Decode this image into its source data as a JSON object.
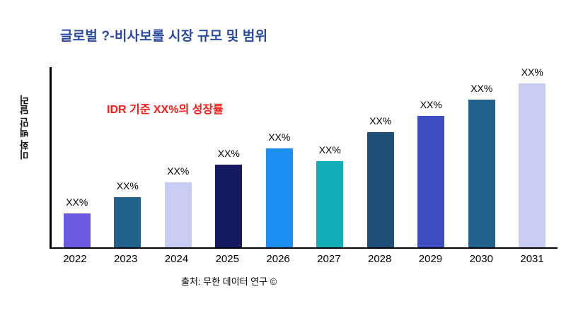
{
  "chart_data": {
    "type": "bar",
    "title": "글로벌 ?-비사보롤 시장 규모 및 범위",
    "ylabel": "미화 백만 달러",
    "xlabel": "",
    "annotation": "IDR 기준 XX%의 성장률",
    "categories": [
      "2022",
      "2023",
      "2024",
      "2025",
      "2026",
      "2027",
      "2028",
      "2029",
      "2030",
      "2031"
    ],
    "values": [
      19,
      28,
      36,
      46,
      55,
      48,
      64,
      73,
      82,
      91
    ],
    "bar_value_labels": [
      "XX%",
      "XX%",
      "XX%",
      "XX%",
      "XX%",
      "XX%",
      "XX%",
      "XX%",
      "XX%",
      "XX%"
    ],
    "bar_colors": [
      "#6A5AE0",
      "#21618C",
      "#C9CDF4",
      "#15195E",
      "#1E8FF2",
      "#13ADB7",
      "#1F4E79",
      "#3D4EC2",
      "#21618C",
      "#C9CDF4"
    ],
    "ylim": [
      0,
      100
    ],
    "grid": false,
    "legend": false
  },
  "footer": {
    "source": "출처: 무한 데이터 연구 ©"
  },
  "colors": {
    "title": "#2B4AA3",
    "annotation": "#FF1A1A",
    "axis": "#000000"
  }
}
